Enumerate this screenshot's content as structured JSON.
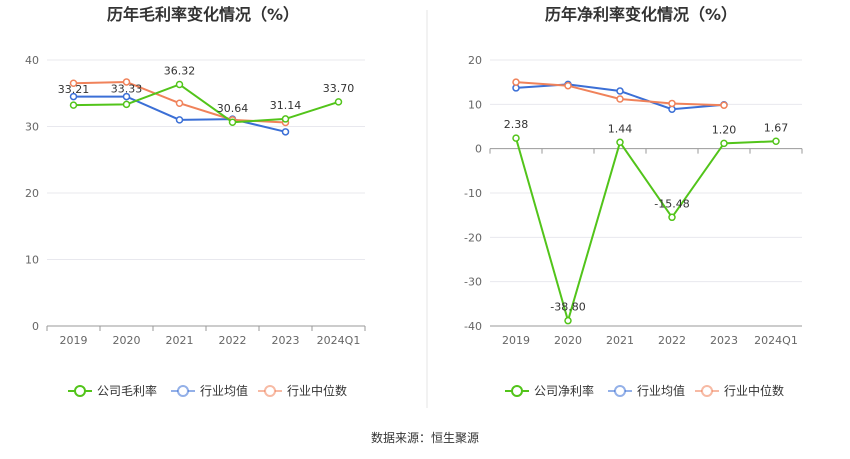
{
  "source_note": "数据来源：恒生聚源",
  "chart_data": [
    {
      "type": "line",
      "title": "历年毛利率变化情况（%）",
      "categories": [
        "2019",
        "2020",
        "2021",
        "2022",
        "2023",
        "2024Q1"
      ],
      "ylim": [
        0,
        40
      ],
      "yticks": [
        0,
        10,
        20,
        30,
        40
      ],
      "grid": true,
      "legend_position": "bottom",
      "series": [
        {
          "name": "公司毛利率",
          "color": "#52c41a",
          "values": [
            33.21,
            33.33,
            36.32,
            30.64,
            31.14,
            33.7
          ],
          "labels": [
            "33.21",
            "33.33",
            "36.32",
            "30.64",
            "31.14",
            "33.70"
          ]
        },
        {
          "name": "行业均值",
          "color": "#3b6fd6",
          "values": [
            34.5,
            34.5,
            31.0,
            31.1,
            29.2,
            null
          ]
        },
        {
          "name": "行业中位数",
          "color": "#f0825a",
          "values": [
            36.5,
            36.7,
            33.5,
            31.0,
            30.6,
            null
          ]
        }
      ]
    },
    {
      "type": "line",
      "title": "历年净利率变化情况（%）",
      "categories": [
        "2019",
        "2020",
        "2021",
        "2022",
        "2023",
        "2024Q1"
      ],
      "ylim": [
        -40,
        20
      ],
      "yticks": [
        -40,
        -30,
        -20,
        -10,
        0,
        10,
        20
      ],
      "grid": true,
      "legend_position": "bottom",
      "series": [
        {
          "name": "公司净利率",
          "color": "#52c41a",
          "values": [
            2.38,
            -38.8,
            1.44,
            -15.48,
            1.2,
            1.67
          ],
          "labels": [
            "2.38",
            "-38.80",
            "1.44",
            "-15.48",
            "1.20",
            "1.67"
          ]
        },
        {
          "name": "行业均值",
          "color": "#3b6fd6",
          "values": [
            13.7,
            14.5,
            13.0,
            8.9,
            9.9,
            null
          ]
        },
        {
          "name": "行业中位数",
          "color": "#f0825a",
          "values": [
            15.0,
            14.2,
            11.2,
            10.2,
            9.8,
            null
          ]
        }
      ]
    }
  ]
}
